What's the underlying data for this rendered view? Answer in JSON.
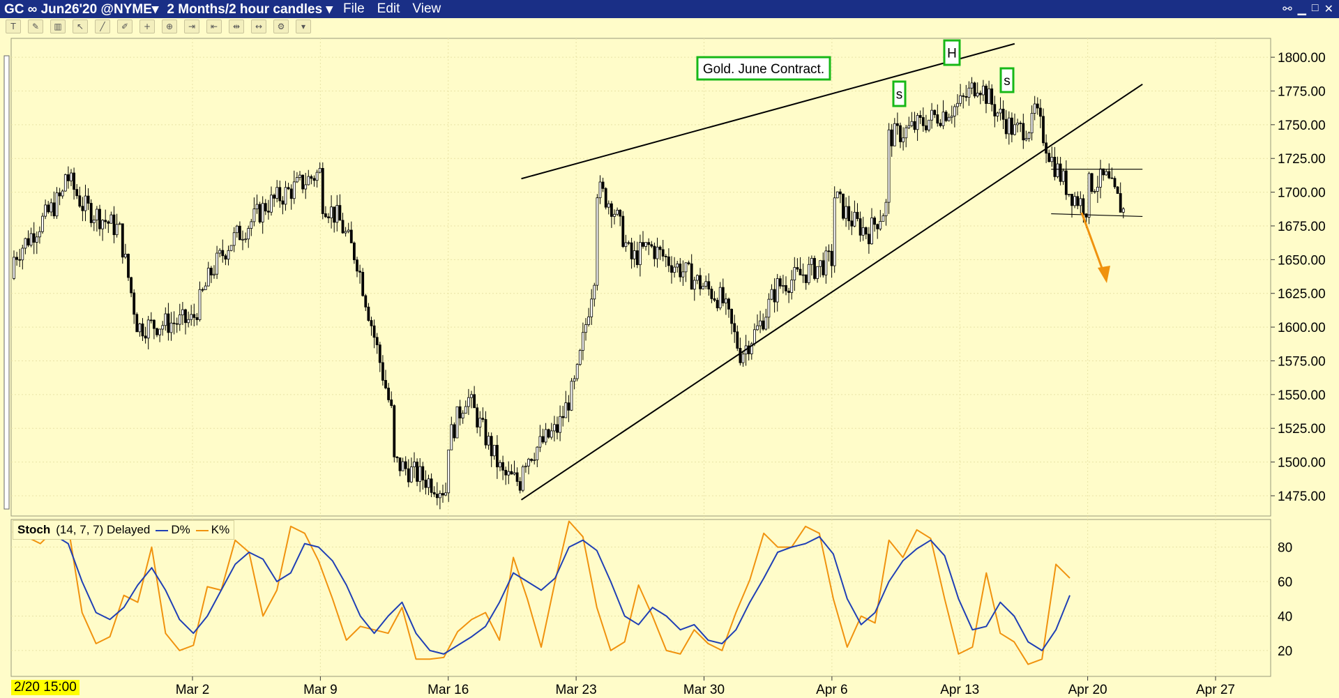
{
  "window": {
    "symbol_menu": "GC ∞ Jun26'20 @NYME",
    "period_menu": "2 Months/2 hour candles",
    "menus": [
      "File",
      "Edit",
      "View"
    ]
  },
  "colors": {
    "background": "#fffcc9",
    "titlebar": "#1a2f86",
    "candle": "#000000",
    "d_line": "#1f3fb5",
    "k_line": "#f0920e",
    "annotation_box": "#17b817",
    "arrow": "#f0920e"
  },
  "toolbar_icons": [
    "text-tool-icon",
    "draw-tool-icon",
    "bars-icon",
    "cursor-icon",
    "line-tool-icon",
    "pencil-tool-icon",
    "crosshair-icon",
    "zoom-icon",
    "scroll-right-icon",
    "scroll-left-icon",
    "split-icon",
    "scroll-both-icon",
    "settings-icon",
    "dropdown-icon"
  ],
  "chart_data": [
    {
      "type": "candlestick",
      "title": "",
      "annotations": [
        "Gold. June Contract.",
        "s",
        "H",
        "s"
      ],
      "y_ticks": [
        "1800.00",
        "1775.00",
        "1750.00",
        "1725.00",
        "1700.00",
        "1675.00",
        "1650.00",
        "1625.00",
        "1600.00",
        "1575.00",
        "1550.00",
        "1525.00",
        "1500.00",
        "1475.00"
      ],
      "ylim": [
        1460,
        1814
      ],
      "x_ticks": [
        "Mar 2",
        "Mar 9",
        "Mar 16",
        "Mar 23",
        "Mar 30",
        "Apr 6",
        "Apr 13",
        "Apr 20",
        "Apr 27"
      ],
      "x_start_label": "2/20 15:00",
      "grid": true,
      "trendlines": [
        {
          "name": "upper",
          "from": [
            "Mar 20",
            1710
          ],
          "to": [
            "Apr 16",
            1810
          ]
        },
        {
          "name": "lower",
          "from": [
            "Mar 20",
            1472
          ],
          "to": [
            "Apr 23",
            1780
          ]
        },
        {
          "name": "resistance",
          "from": [
            "Apr 18",
            1717
          ],
          "to": [
            "Apr 23",
            1717
          ]
        },
        {
          "name": "support",
          "from": [
            "Apr 18",
            1684
          ],
          "to": [
            "Apr 23",
            1682
          ]
        }
      ],
      "price_path": [
        [
          "2/20 15:00",
          1636
        ],
        [
          "Feb 21",
          1648
        ],
        [
          "Feb 24",
          1700
        ],
        [
          "Feb 24",
          1715
        ],
        [
          "Feb 25",
          1690
        ],
        [
          "Feb 27",
          1672
        ],
        [
          "Feb 28",
          1600
        ],
        [
          "Mar 2",
          1605
        ],
        [
          "Mar 3",
          1640
        ],
        [
          "Mar 4",
          1662
        ],
        [
          "Mar 5",
          1675
        ],
        [
          "Mar 6",
          1690
        ],
        [
          "Mar 9",
          1715
        ],
        [
          "Mar 9",
          1695
        ],
        [
          "Mar 10",
          1680
        ],
        [
          "Mar 11",
          1650
        ],
        [
          "Mar 12",
          1590
        ],
        [
          "Mar 13",
          1530
        ],
        [
          "Mar 13",
          1500
        ],
        [
          "Mar 16",
          1478
        ],
        [
          "Mar 16",
          1515
        ],
        [
          "Mar 17",
          1550
        ],
        [
          "Mar 18",
          1520
        ],
        [
          "Mar 19",
          1490
        ],
        [
          "Mar 20",
          1485
        ],
        [
          "Mar 20",
          1500
        ],
        [
          "Mar 22",
          1525
        ],
        [
          "Mar 23",
          1560
        ],
        [
          "Mar 24",
          1640
        ],
        [
          "Mar 24",
          1705
        ],
        [
          "Mar 25",
          1690
        ],
        [
          "Mar 26",
          1650
        ],
        [
          "Mar 27",
          1660
        ],
        [
          "Mar 30",
          1630
        ],
        [
          "Mar 31",
          1620
        ],
        [
          "Apr 1",
          1580
        ],
        [
          "Apr 2",
          1600
        ],
        [
          "Apr 3",
          1630
        ],
        [
          "Apr 6",
          1650
        ],
        [
          "Apr 6",
          1700
        ],
        [
          "Apr 7",
          1680
        ],
        [
          "Apr 8",
          1670
        ],
        [
          "Apr 9",
          1690
        ],
        [
          "Apr 9",
          1740
        ],
        [
          "Apr 10",
          1745
        ],
        [
          "Apr 13",
          1765
        ],
        [
          "Apr 14",
          1782
        ],
        [
          "Apr 15",
          1760
        ],
        [
          "Apr 16",
          1745
        ],
        [
          "Apr 17",
          1750
        ],
        [
          "Apr 17",
          1765
        ],
        [
          "Apr 18",
          1725
        ],
        [
          "Apr 19",
          1700
        ],
        [
          "Apr 20",
          1688
        ],
        [
          "Apr 20",
          1705
        ],
        [
          "Apr 21",
          1710
        ],
        [
          "Apr 22",
          1685
        ]
      ]
    },
    {
      "type": "line",
      "title": "Stoch",
      "params": "(14, 7, 7) Delayed",
      "ylim": [
        5,
        96
      ],
      "y_ticks": [
        "80",
        "60",
        "40",
        "20"
      ],
      "series": [
        {
          "name": "D%",
          "values": [
            89,
            88,
            89,
            87,
            82,
            60,
            42,
            38,
            45,
            58,
            68,
            55,
            38,
            30,
            40,
            55,
            70,
            77,
            73,
            60,
            65,
            82,
            80,
            72,
            58,
            40,
            30,
            40,
            48,
            30,
            20,
            18,
            23,
            28,
            34,
            48,
            65,
            60,
            55,
            62,
            80,
            84,
            78,
            60,
            40,
            35,
            45,
            40,
            32,
            35,
            26,
            24,
            32,
            48,
            62,
            77,
            80,
            82,
            86,
            76,
            50,
            35,
            42,
            60,
            72,
            79,
            84,
            75,
            50,
            32,
            34,
            48,
            40,
            25,
            20,
            32,
            52
          ]
        },
        {
          "name": "K%",
          "values": [
            89,
            86,
            82,
            90,
            92,
            42,
            24,
            28,
            52,
            48,
            80,
            30,
            20,
            23,
            57,
            55,
            84,
            77,
            40,
            55,
            92,
            88,
            72,
            50,
            26,
            34,
            32,
            30,
            45,
            15,
            15,
            16,
            31,
            38,
            42,
            26,
            74,
            50,
            22,
            60,
            95,
            86,
            45,
            20,
            25,
            58,
            40,
            20,
            18,
            32,
            24,
            20,
            42,
            61,
            88,
            80,
            80,
            92,
            88,
            50,
            22,
            40,
            36,
            84,
            74,
            90,
            85,
            50,
            18,
            22,
            65,
            30,
            25,
            12,
            15,
            70,
            62
          ]
        }
      ]
    }
  ]
}
